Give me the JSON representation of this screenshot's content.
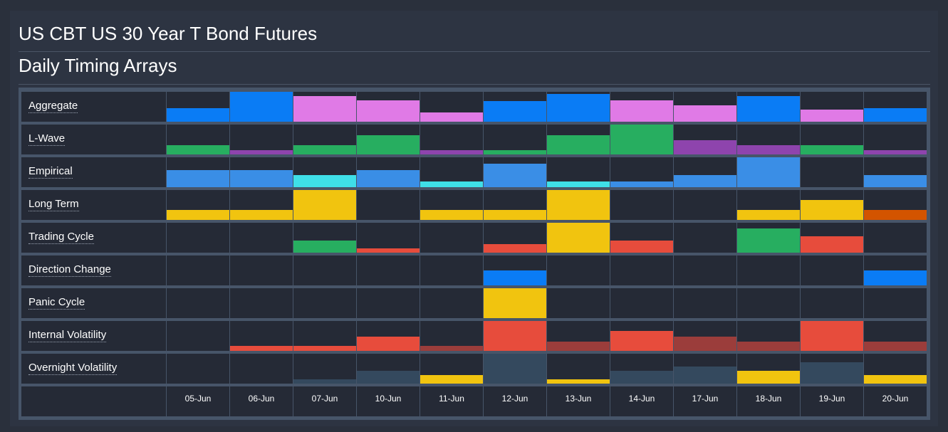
{
  "header": {
    "title": "US CBT US 30 Year T Bond Futures",
    "subtitle": "Daily Timing Arrays"
  },
  "chart_data": {
    "type": "heatmap",
    "categories": [
      "05-Jun",
      "06-Jun",
      "07-Jun",
      "10-Jun",
      "11-Jun",
      "12-Jun",
      "13-Jun",
      "14-Jun",
      "17-Jun",
      "18-Jun",
      "19-Jun",
      "20-Jun"
    ],
    "ylim": [
      0,
      1
    ],
    "series": [
      {
        "name": "Aggregate",
        "values": [
          0.45,
          1.0,
          0.85,
          0.72,
          0.32,
          0.7,
          0.92,
          0.72,
          0.55,
          0.85,
          0.4,
          0.45
        ],
        "colors": [
          "#0a7cf5",
          "#0a7cf5",
          "#e07ae6",
          "#e07ae6",
          "#e07ae6",
          "#0a7cf5",
          "#0a7cf5",
          "#e07ae6",
          "#e07ae6",
          "#0a7cf5",
          "#e07ae6",
          "#0a7cf5"
        ]
      },
      {
        "name": "L-Wave",
        "values": [
          0.3,
          0.14,
          0.3,
          0.65,
          0.14,
          0.14,
          0.65,
          1.0,
          0.47,
          0.3,
          0.3,
          0.14
        ],
        "colors": [
          "#27ae60",
          "#8e44ad",
          "#27ae60",
          "#27ae60",
          "#8e44ad",
          "#27ae60",
          "#27ae60",
          "#27ae60",
          "#8e44ad",
          "#8e44ad",
          "#27ae60",
          "#8e44ad"
        ]
      },
      {
        "name": "Empirical",
        "values": [
          0.58,
          0.58,
          0.4,
          0.58,
          0.2,
          0.78,
          0.2,
          0.2,
          0.4,
          1.0,
          0,
          0.4
        ],
        "colors": [
          "#3a8ee6",
          "#3a8ee6",
          "#3fdfe8",
          "#3a8ee6",
          "#3fdfe8",
          "#3a8ee6",
          "#3fdfe8",
          "#3a8ee6",
          "#3a8ee6",
          "#3a8ee6",
          "#3a8ee6",
          "#3a8ee6"
        ]
      },
      {
        "name": "Long Term",
        "values": [
          0.33,
          0.33,
          1.0,
          0,
          0.33,
          0.33,
          1.0,
          0,
          0,
          0.33,
          0.66,
          0.33
        ],
        "colors": [
          "#f1c40f",
          "#f1c40f",
          "#f1c40f",
          "#f1c40f",
          "#f1c40f",
          "#f1c40f",
          "#f1c40f",
          "#f1c40f",
          "#f1c40f",
          "#f1c40f",
          "#f1c40f",
          "#d35400"
        ]
      },
      {
        "name": "Trading Cycle",
        "values": [
          0,
          0,
          0.4,
          0.15,
          0,
          0.28,
          1.0,
          0.4,
          0,
          0.82,
          0.55,
          0
        ],
        "colors": [
          "#27ae60",
          "#27ae60",
          "#27ae60",
          "#e74c3c",
          "#e74c3c",
          "#e74c3c",
          "#f1c40f",
          "#e74c3c",
          "#e74c3c",
          "#27ae60",
          "#e74c3c",
          "#e74c3c"
        ]
      },
      {
        "name": "Direction Change",
        "values": [
          0,
          0,
          0,
          0,
          0,
          0.5,
          0,
          0,
          0,
          0,
          0,
          0.5
        ],
        "colors": [
          "#0a7cf5",
          "#0a7cf5",
          "#0a7cf5",
          "#0a7cf5",
          "#0a7cf5",
          "#0a7cf5",
          "#0a7cf5",
          "#0a7cf5",
          "#0a7cf5",
          "#0a7cf5",
          "#0a7cf5",
          "#0a7cf5"
        ]
      },
      {
        "name": "Panic Cycle",
        "values": [
          0,
          0,
          0,
          0,
          0,
          1.0,
          0,
          0,
          0,
          0,
          0,
          0
        ],
        "colors": [
          "#f1c40f",
          "#f1c40f",
          "#f1c40f",
          "#f1c40f",
          "#f1c40f",
          "#f1c40f",
          "#f1c40f",
          "#f1c40f",
          "#f1c40f",
          "#f1c40f",
          "#f1c40f",
          "#f1c40f"
        ]
      },
      {
        "name": "Internal Volatility",
        "values": [
          0,
          0.16,
          0.16,
          0.48,
          0.16,
          1.0,
          0.3,
          0.66,
          0.48,
          0.3,
          1.0,
          0.3
        ],
        "colors": [
          "#e74c3c",
          "#e74c3c",
          "#e74c3c",
          "#e74c3c",
          "#9b3d3b",
          "#e74c3c",
          "#9b3d3b",
          "#e74c3c",
          "#9b3d3b",
          "#9b3d3b",
          "#e74c3c",
          "#9b3d3b"
        ]
      },
      {
        "name": "Overnight Volatility",
        "values": [
          0,
          0,
          0.14,
          0.44,
          0.28,
          1.0,
          0.14,
          0.44,
          0.56,
          0.44,
          0.72,
          0.28
        ],
        "colors": [
          "#34495e",
          "#34495e",
          "#34495e",
          "#34495e",
          "#f1c40f",
          "#34495e",
          "#f1c40f",
          "#34495e",
          "#34495e",
          "#f1c40f",
          "#34495e",
          "#f1c40f"
        ]
      }
    ]
  }
}
